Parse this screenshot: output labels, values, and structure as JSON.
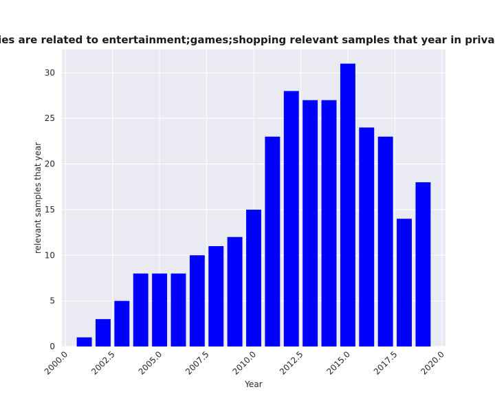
{
  "chart_data": {
    "type": "bar",
    "title": "Categories are related to entertainment;games;shopping relevant samples that year in privacy policies",
    "xlabel": "Year",
    "ylabel": "relevant samples that year",
    "x": [
      2001,
      2002,
      2003,
      2004,
      2005,
      2006,
      2007,
      2008,
      2009,
      2010,
      2011,
      2012,
      2013,
      2014,
      2015,
      2016,
      2017,
      2018,
      2019
    ],
    "values": [
      1,
      3,
      5,
      8,
      8,
      8,
      10,
      11,
      12,
      15,
      23,
      28,
      27,
      27,
      31,
      24,
      23,
      14,
      18
    ],
    "xlim": [
      1999.81,
      2020.19
    ],
    "ylim": [
      0,
      32.55
    ],
    "xticks": [
      "2000.0",
      "2002.5",
      "2005.0",
      "2007.5",
      "2010.0",
      "2012.5",
      "2015.0",
      "2017.5",
      "2020.0"
    ],
    "yticks": [
      "0",
      "5",
      "10",
      "15",
      "20",
      "25",
      "30"
    ],
    "bar_color": "#0000ff",
    "background": "#eaeaf2",
    "grid": true
  }
}
